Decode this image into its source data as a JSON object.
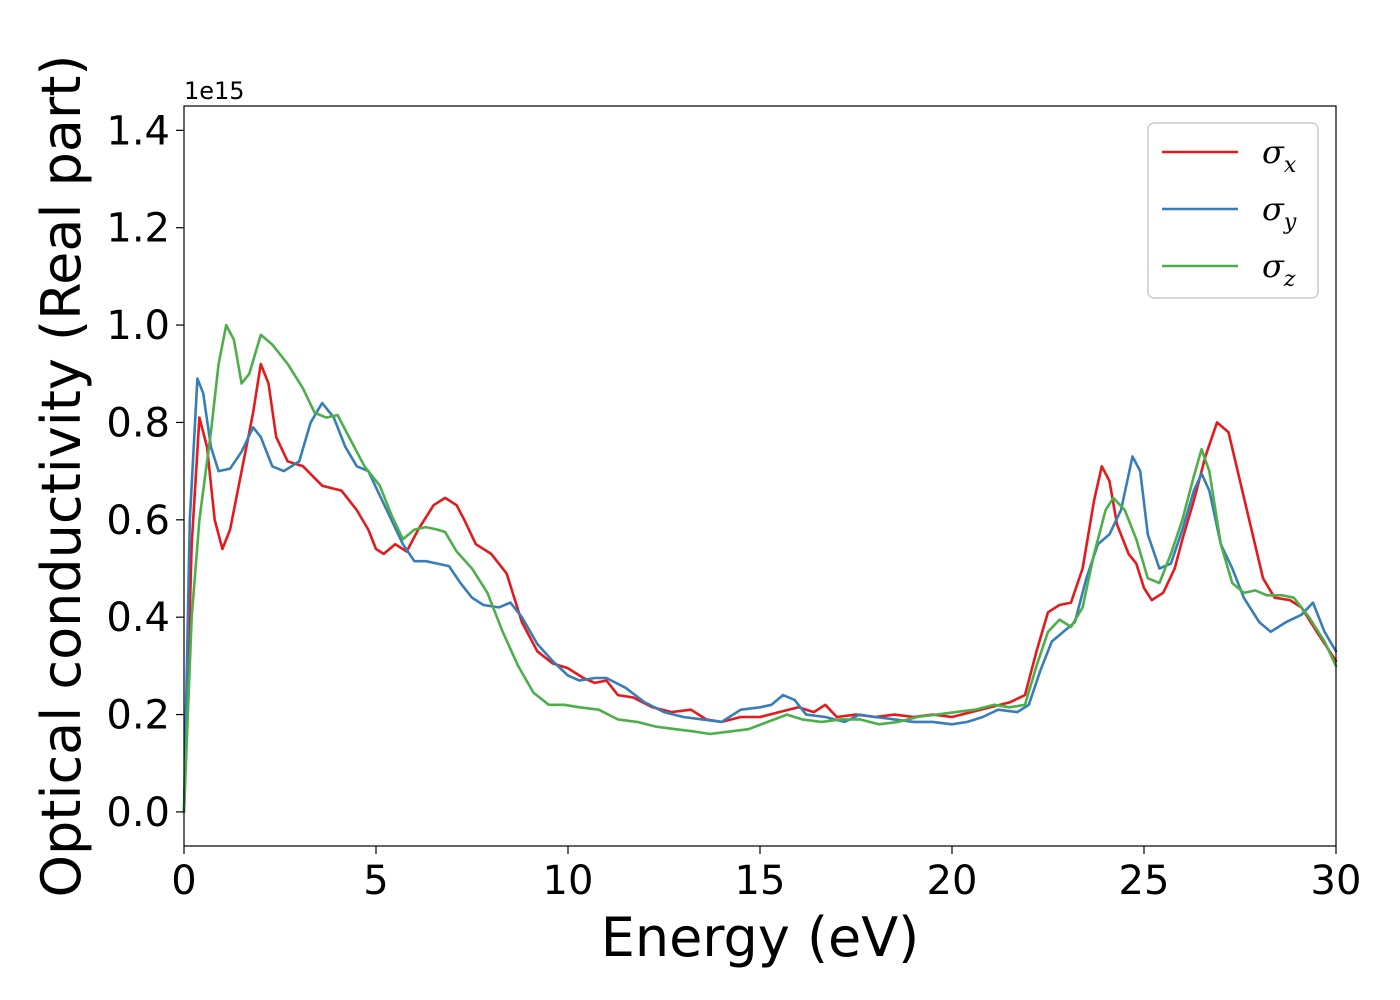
{
  "chart_data": {
    "type": "line",
    "title": "",
    "xlabel": "Energy (eV)",
    "ylabel": "Optical conductivity (Real part)",
    "y_offset_label": "1e15",
    "xlim": [
      0,
      30
    ],
    "ylim": [
      -0.07,
      1.45
    ],
    "xticks": [
      0,
      5,
      10,
      15,
      20,
      25,
      30
    ],
    "xtick_labels": [
      "0",
      "5",
      "10",
      "15",
      "20",
      "25",
      "30"
    ],
    "yticks": [
      0.0,
      0.2,
      0.4,
      0.6,
      0.8,
      1.0,
      1.2,
      1.4
    ],
    "ytick_labels": [
      "0.0",
      "0.2",
      "0.4",
      "0.6",
      "0.8",
      "1.0",
      "1.2",
      "1.4"
    ],
    "grid": false,
    "legend_position": "top-right",
    "series": [
      {
        "name": "σx",
        "symbol": "σ",
        "subscript": "x",
        "color": "#e41a1c",
        "points": [
          [
            0,
            0
          ],
          [
            0.2,
            0.55
          ],
          [
            0.4,
            0.81
          ],
          [
            0.6,
            0.75
          ],
          [
            0.8,
            0.6
          ],
          [
            1.0,
            0.54
          ],
          [
            1.2,
            0.58
          ],
          [
            1.5,
            0.7
          ],
          [
            1.8,
            0.82
          ],
          [
            2.0,
            0.92
          ],
          [
            2.2,
            0.88
          ],
          [
            2.4,
            0.77
          ],
          [
            2.7,
            0.72
          ],
          [
            3.1,
            0.71
          ],
          [
            3.6,
            0.67
          ],
          [
            4.1,
            0.66
          ],
          [
            4.5,
            0.62
          ],
          [
            4.8,
            0.58
          ],
          [
            5.0,
            0.54
          ],
          [
            5.2,
            0.53
          ],
          [
            5.5,
            0.55
          ],
          [
            5.8,
            0.535
          ],
          [
            6.1,
            0.58
          ],
          [
            6.5,
            0.63
          ],
          [
            6.8,
            0.645
          ],
          [
            7.1,
            0.63
          ],
          [
            7.3,
            0.6
          ],
          [
            7.6,
            0.55
          ],
          [
            8.0,
            0.53
          ],
          [
            8.4,
            0.49
          ],
          [
            8.8,
            0.39
          ],
          [
            9.2,
            0.33
          ],
          [
            9.6,
            0.305
          ],
          [
            10.0,
            0.295
          ],
          [
            10.4,
            0.275
          ],
          [
            10.7,
            0.265
          ],
          [
            11.0,
            0.27
          ],
          [
            11.3,
            0.24
          ],
          [
            11.7,
            0.235
          ],
          [
            12.2,
            0.215
          ],
          [
            12.7,
            0.205
          ],
          [
            13.2,
            0.21
          ],
          [
            13.6,
            0.19
          ],
          [
            14.0,
            0.185
          ],
          [
            14.5,
            0.195
          ],
          [
            15.0,
            0.195
          ],
          [
            15.5,
            0.205
          ],
          [
            16.0,
            0.215
          ],
          [
            16.4,
            0.205
          ],
          [
            16.7,
            0.22
          ],
          [
            17.0,
            0.195
          ],
          [
            17.5,
            0.2
          ],
          [
            18.0,
            0.195
          ],
          [
            18.5,
            0.2
          ],
          [
            19.0,
            0.195
          ],
          [
            19.5,
            0.2
          ],
          [
            20.0,
            0.195
          ],
          [
            20.5,
            0.205
          ],
          [
            21.0,
            0.215
          ],
          [
            21.5,
            0.225
          ],
          [
            21.9,
            0.24
          ],
          [
            22.2,
            0.33
          ],
          [
            22.5,
            0.41
          ],
          [
            22.8,
            0.425
          ],
          [
            23.1,
            0.43
          ],
          [
            23.4,
            0.5
          ],
          [
            23.7,
            0.64
          ],
          [
            23.9,
            0.71
          ],
          [
            24.1,
            0.68
          ],
          [
            24.3,
            0.59
          ],
          [
            24.6,
            0.53
          ],
          [
            24.8,
            0.51
          ],
          [
            25.0,
            0.46
          ],
          [
            25.2,
            0.435
          ],
          [
            25.5,
            0.45
          ],
          [
            25.8,
            0.5
          ],
          [
            26.0,
            0.56
          ],
          [
            26.3,
            0.64
          ],
          [
            26.6,
            0.73
          ],
          [
            26.9,
            0.8
          ],
          [
            27.2,
            0.78
          ],
          [
            27.5,
            0.68
          ],
          [
            27.8,
            0.58
          ],
          [
            28.1,
            0.48
          ],
          [
            28.4,
            0.44
          ],
          [
            28.8,
            0.435
          ],
          [
            29.1,
            0.42
          ],
          [
            29.5,
            0.37
          ],
          [
            30.0,
            0.31
          ]
        ]
      },
      {
        "name": "σy",
        "symbol": "σ",
        "subscript": "y",
        "color": "#377eb8",
        "points": [
          [
            0,
            0
          ],
          [
            0.15,
            0.6
          ],
          [
            0.35,
            0.89
          ],
          [
            0.5,
            0.86
          ],
          [
            0.7,
            0.75
          ],
          [
            0.9,
            0.7
          ],
          [
            1.2,
            0.705
          ],
          [
            1.5,
            0.74
          ],
          [
            1.8,
            0.79
          ],
          [
            2.0,
            0.77
          ],
          [
            2.3,
            0.71
          ],
          [
            2.6,
            0.7
          ],
          [
            3.0,
            0.72
          ],
          [
            3.3,
            0.8
          ],
          [
            3.6,
            0.84
          ],
          [
            3.9,
            0.81
          ],
          [
            4.2,
            0.75
          ],
          [
            4.5,
            0.71
          ],
          [
            4.8,
            0.7
          ],
          [
            5.1,
            0.65
          ],
          [
            5.4,
            0.6
          ],
          [
            5.7,
            0.55
          ],
          [
            6.0,
            0.515
          ],
          [
            6.3,
            0.515
          ],
          [
            6.6,
            0.51
          ],
          [
            6.9,
            0.505
          ],
          [
            7.2,
            0.47
          ],
          [
            7.5,
            0.44
          ],
          [
            7.8,
            0.425
          ],
          [
            8.2,
            0.42
          ],
          [
            8.5,
            0.43
          ],
          [
            8.8,
            0.4
          ],
          [
            9.2,
            0.345
          ],
          [
            9.6,
            0.31
          ],
          [
            10.0,
            0.28
          ],
          [
            10.3,
            0.27
          ],
          [
            10.7,
            0.275
          ],
          [
            11.0,
            0.275
          ],
          [
            11.5,
            0.255
          ],
          [
            12.0,
            0.225
          ],
          [
            12.5,
            0.205
          ],
          [
            13.0,
            0.195
          ],
          [
            13.5,
            0.19
          ],
          [
            14.0,
            0.185
          ],
          [
            14.5,
            0.21
          ],
          [
            15.0,
            0.215
          ],
          [
            15.3,
            0.22
          ],
          [
            15.6,
            0.24
          ],
          [
            15.9,
            0.23
          ],
          [
            16.2,
            0.2
          ],
          [
            16.7,
            0.195
          ],
          [
            17.2,
            0.185
          ],
          [
            17.6,
            0.2
          ],
          [
            18.0,
            0.195
          ],
          [
            18.5,
            0.19
          ],
          [
            19.0,
            0.185
          ],
          [
            19.5,
            0.185
          ],
          [
            20.0,
            0.18
          ],
          [
            20.4,
            0.185
          ],
          [
            20.8,
            0.195
          ],
          [
            21.2,
            0.21
          ],
          [
            21.7,
            0.205
          ],
          [
            22.0,
            0.22
          ],
          [
            22.3,
            0.29
          ],
          [
            22.6,
            0.35
          ],
          [
            22.9,
            0.37
          ],
          [
            23.2,
            0.39
          ],
          [
            23.5,
            0.48
          ],
          [
            23.8,
            0.55
          ],
          [
            24.1,
            0.57
          ],
          [
            24.4,
            0.62
          ],
          [
            24.7,
            0.73
          ],
          [
            24.9,
            0.7
          ],
          [
            25.1,
            0.57
          ],
          [
            25.4,
            0.5
          ],
          [
            25.7,
            0.51
          ],
          [
            26.0,
            0.58
          ],
          [
            26.3,
            0.66
          ],
          [
            26.5,
            0.695
          ],
          [
            26.7,
            0.66
          ],
          [
            27.0,
            0.55
          ],
          [
            27.3,
            0.5
          ],
          [
            27.6,
            0.44
          ],
          [
            28.0,
            0.39
          ],
          [
            28.3,
            0.37
          ],
          [
            28.7,
            0.39
          ],
          [
            29.1,
            0.405
          ],
          [
            29.4,
            0.43
          ],
          [
            29.7,
            0.37
          ],
          [
            30.0,
            0.33
          ]
        ]
      },
      {
        "name": "σz",
        "symbol": "σ",
        "subscript": "z",
        "color": "#4daf4a",
        "points": [
          [
            0,
            0
          ],
          [
            0.2,
            0.4
          ],
          [
            0.4,
            0.6
          ],
          [
            0.7,
            0.78
          ],
          [
            0.9,
            0.92
          ],
          [
            1.1,
            1.0
          ],
          [
            1.3,
            0.97
          ],
          [
            1.5,
            0.88
          ],
          [
            1.7,
            0.9
          ],
          [
            2.0,
            0.98
          ],
          [
            2.3,
            0.96
          ],
          [
            2.7,
            0.92
          ],
          [
            3.1,
            0.87
          ],
          [
            3.4,
            0.82
          ],
          [
            3.7,
            0.81
          ],
          [
            4.0,
            0.815
          ],
          [
            4.3,
            0.77
          ],
          [
            4.7,
            0.71
          ],
          [
            5.1,
            0.67
          ],
          [
            5.4,
            0.61
          ],
          [
            5.7,
            0.56
          ],
          [
            6.0,
            0.58
          ],
          [
            6.3,
            0.585
          ],
          [
            6.6,
            0.58
          ],
          [
            6.8,
            0.575
          ],
          [
            7.1,
            0.535
          ],
          [
            7.5,
            0.5
          ],
          [
            7.9,
            0.45
          ],
          [
            8.3,
            0.37
          ],
          [
            8.7,
            0.3
          ],
          [
            9.1,
            0.245
          ],
          [
            9.5,
            0.22
          ],
          [
            9.9,
            0.22
          ],
          [
            10.3,
            0.215
          ],
          [
            10.8,
            0.21
          ],
          [
            11.3,
            0.19
          ],
          [
            11.8,
            0.185
          ],
          [
            12.3,
            0.175
          ],
          [
            12.8,
            0.17
          ],
          [
            13.3,
            0.165
          ],
          [
            13.7,
            0.16
          ],
          [
            14.2,
            0.165
          ],
          [
            14.7,
            0.17
          ],
          [
            15.2,
            0.185
          ],
          [
            15.7,
            0.2
          ],
          [
            16.1,
            0.19
          ],
          [
            16.6,
            0.185
          ],
          [
            17.1,
            0.19
          ],
          [
            17.6,
            0.19
          ],
          [
            18.1,
            0.18
          ],
          [
            18.6,
            0.185
          ],
          [
            19.1,
            0.195
          ],
          [
            19.6,
            0.2
          ],
          [
            20.1,
            0.205
          ],
          [
            20.6,
            0.21
          ],
          [
            21.1,
            0.22
          ],
          [
            21.5,
            0.215
          ],
          [
            21.9,
            0.22
          ],
          [
            22.2,
            0.3
          ],
          [
            22.5,
            0.37
          ],
          [
            22.8,
            0.395
          ],
          [
            23.1,
            0.38
          ],
          [
            23.4,
            0.42
          ],
          [
            23.7,
            0.53
          ],
          [
            24.0,
            0.62
          ],
          [
            24.2,
            0.645
          ],
          [
            24.5,
            0.62
          ],
          [
            24.8,
            0.56
          ],
          [
            25.1,
            0.48
          ],
          [
            25.4,
            0.47
          ],
          [
            25.7,
            0.53
          ],
          [
            26.0,
            0.6
          ],
          [
            26.3,
            0.69
          ],
          [
            26.5,
            0.745
          ],
          [
            26.7,
            0.7
          ],
          [
            27.0,
            0.55
          ],
          [
            27.3,
            0.47
          ],
          [
            27.6,
            0.45
          ],
          [
            27.9,
            0.455
          ],
          [
            28.2,
            0.445
          ],
          [
            28.6,
            0.445
          ],
          [
            28.9,
            0.44
          ],
          [
            29.3,
            0.4
          ],
          [
            29.7,
            0.35
          ],
          [
            30.0,
            0.3
          ]
        ]
      }
    ]
  }
}
